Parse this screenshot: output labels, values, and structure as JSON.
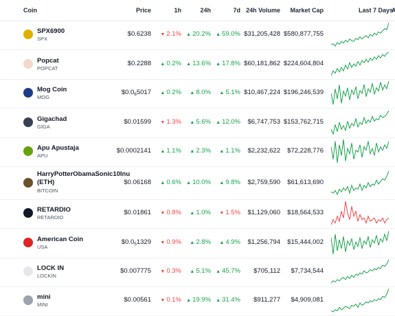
{
  "colors": {
    "up": "#16a34a",
    "down": "#ef4444"
  },
  "header": {
    "coin": "Coin",
    "price": "Price",
    "h1": "1h",
    "h24": "24h",
    "d7": "7d",
    "volume": "24h Volume",
    "mcap": "Market Cap",
    "last7": "Last 7 Days",
    "extra": "A"
  },
  "coins": [
    {
      "name": "SPX6900",
      "symbol": "SPX",
      "price": "$0.6238",
      "h1": "2.1%",
      "h1_dir": "down",
      "h24": "20.2%",
      "h24_dir": "up",
      "d7": "59.0%",
      "d7_dir": "up",
      "volume": "$31,205,428",
      "mcap": "$580,877,755",
      "icon": "spx-coin-icon",
      "icon_color": "#e0b000",
      "trend": "up",
      "spark": [
        20,
        22,
        18,
        24,
        21,
        26,
        23,
        28,
        25,
        30,
        27,
        26,
        31,
        29,
        34,
        30,
        33,
        36,
        32,
        38,
        35,
        40,
        37,
        42,
        40,
        44,
        48,
        46,
        58
      ]
    },
    {
      "name": "Popcat",
      "symbol": "POPCAT",
      "price": "$0.2288",
      "h1": "0.2%",
      "h1_dir": "up",
      "h24": "13.6%",
      "h24_dir": "up",
      "d7": "17.8%",
      "d7_dir": "up",
      "volume": "$60,181,862",
      "mcap": "$224,604,804",
      "icon": "popcat-icon",
      "icon_color": "#f3d9c8",
      "trend": "up",
      "spark": [
        22,
        30,
        26,
        34,
        28,
        36,
        30,
        40,
        33,
        44,
        36,
        42,
        38,
        46,
        40,
        48,
        44,
        50,
        45,
        52,
        48,
        54,
        50,
        56,
        52,
        58,
        55,
        60,
        62
      ]
    },
    {
      "name": "Mog Coin",
      "symbol": "MOG",
      "price_main": "$0.0",
      "price_sub": "6",
      "price_tail": "5017",
      "h1": "0.2%",
      "h1_dir": "up",
      "h24": "8.0%",
      "h24_dir": "up",
      "d7": "5.1%",
      "d7_dir": "up",
      "volume": "$10,467,224",
      "mcap": "$196,246,539",
      "icon": "mog-icon",
      "icon_color": "#1e3a8a",
      "trend": "up",
      "spark": [
        40,
        20,
        48,
        30,
        55,
        22,
        44,
        35,
        50,
        28,
        46,
        38,
        52,
        30,
        45,
        40,
        56,
        34,
        48,
        42,
        58,
        38,
        50,
        44,
        60,
        46,
        55,
        48,
        62
      ]
    },
    {
      "name": "Gigachad",
      "symbol": "GIGA",
      "price": "$0.01599",
      "h1": "1.3%",
      "h1_dir": "down",
      "h24": "5.6%",
      "h24_dir": "up",
      "d7": "12.0%",
      "d7_dir": "up",
      "volume": "$6,747,753",
      "mcap": "$153,762,715",
      "icon": "gigachad-icon",
      "icon_color": "#374151",
      "trend": "up",
      "spark": [
        30,
        22,
        38,
        26,
        42,
        30,
        36,
        28,
        44,
        32,
        40,
        36,
        48,
        34,
        42,
        38,
        50,
        40,
        46,
        42,
        52,
        44,
        48,
        46,
        54,
        50,
        52,
        56,
        62
      ]
    },
    {
      "name": "Apu Apustaja",
      "symbol": "APU",
      "price": "$0.0002141",
      "h1": "1.1%",
      "h1_dir": "up",
      "h24": "2.3%",
      "h24_dir": "up",
      "d7": "1.1%",
      "d7_dir": "up",
      "volume": "$2,232,622",
      "mcap": "$72,228,776",
      "icon": "apu-icon",
      "icon_color": "#65a30d",
      "trend": "up",
      "spark": [
        44,
        30,
        50,
        26,
        46,
        34,
        52,
        28,
        42,
        36,
        48,
        30,
        40,
        38,
        46,
        32,
        44,
        40,
        50,
        36,
        42,
        34,
        48,
        38,
        44,
        40,
        46,
        42,
        50
      ]
    },
    {
      "name": "HarryPotterObamaSonic10Inu (ETH)",
      "name1": "HarryPotterObamaSonic10Inu",
      "name2": "(ETH)",
      "symbol": "BITCOIN",
      "price": "$0.06168",
      "h1": "0.6%",
      "h1_dir": "up",
      "h24": "10.0%",
      "h24_dir": "up",
      "d7": "9.8%",
      "d7_dir": "up",
      "volume": "$2,759,590",
      "mcap": "$61,613,690",
      "icon": "hpos-icon",
      "icon_color": "#6b4f2a",
      "trend": "up",
      "spark": [
        28,
        26,
        30,
        24,
        32,
        28,
        34,
        30,
        36,
        26,
        38,
        30,
        34,
        32,
        40,
        30,
        38,
        34,
        42,
        36,
        40,
        38,
        46,
        40,
        44,
        48,
        46,
        52,
        60
      ]
    },
    {
      "name": "RETARDIO",
      "symbol": "RETARDIO",
      "price": "$0.01861",
      "h1": "0.8%",
      "h1_dir": "down",
      "h24": "1.0%",
      "h24_dir": "up",
      "d7": "1.5%",
      "d7_dir": "down",
      "volume": "$1,129,060",
      "mcap": "$18,564,533",
      "icon": "retardio-icon",
      "icon_color": "#111827",
      "trend": "down",
      "spark": [
        34,
        40,
        36,
        44,
        38,
        50,
        42,
        62,
        48,
        40,
        56,
        44,
        50,
        38,
        46,
        40,
        42,
        36,
        44,
        38,
        40,
        42,
        36,
        40,
        38,
        42,
        36,
        40,
        42
      ]
    },
    {
      "name": "American Coin",
      "symbol": "USA",
      "price_main": "$0.0",
      "price_sub": "5",
      "price_tail": "1329",
      "h1": "0.9%",
      "h1_dir": "down",
      "h24": "2.8%",
      "h24_dir": "up",
      "d7": "4.9%",
      "d7_dir": "up",
      "volume": "$1,256,794",
      "mcap": "$15,444,002",
      "icon": "usa-coin-icon",
      "icon_color": "#dc2626",
      "trend": "up",
      "spark": [
        50,
        20,
        56,
        26,
        46,
        30,
        52,
        24,
        44,
        36,
        48,
        28,
        42,
        34,
        50,
        30,
        44,
        38,
        52,
        32,
        46,
        40,
        54,
        36,
        48,
        42,
        56,
        44,
        62
      ]
    },
    {
      "name": "LOCK IN",
      "symbol": "LOCKIN",
      "price": "$0.007775",
      "h1": "0.3%",
      "h1_dir": "down",
      "h24": "5.1%",
      "h24_dir": "up",
      "d7": "45.7%",
      "d7_dir": "up",
      "volume": "$705,112",
      "mcap": "$7,734,544",
      "icon": "lockin-icon",
      "icon_color": "#e5e7eb",
      "trend": "up",
      "spark": [
        20,
        24,
        22,
        26,
        24,
        28,
        30,
        26,
        32,
        28,
        34,
        30,
        36,
        34,
        38,
        36,
        42,
        38,
        40,
        44,
        42,
        46,
        44,
        48,
        46,
        52,
        50,
        54,
        62
      ]
    },
    {
      "name": "mini",
      "symbol": "MINI",
      "price": "$0.00561",
      "h1": "0.1%",
      "h1_dir": "down",
      "h24": "19.9%",
      "h24_dir": "up",
      "d7": "31.4%",
      "d7_dir": "up",
      "volume": "$911,277",
      "mcap": "$4,909,081",
      "icon": "mini-icon",
      "icon_color": "#9ca3af",
      "trend": "up",
      "spark": [
        22,
        20,
        24,
        22,
        28,
        24,
        26,
        30,
        28,
        26,
        32,
        30,
        34,
        28,
        36,
        32,
        34,
        38,
        36,
        40,
        38,
        42,
        40,
        44,
        42,
        48,
        46,
        52,
        62
      ]
    }
  ]
}
